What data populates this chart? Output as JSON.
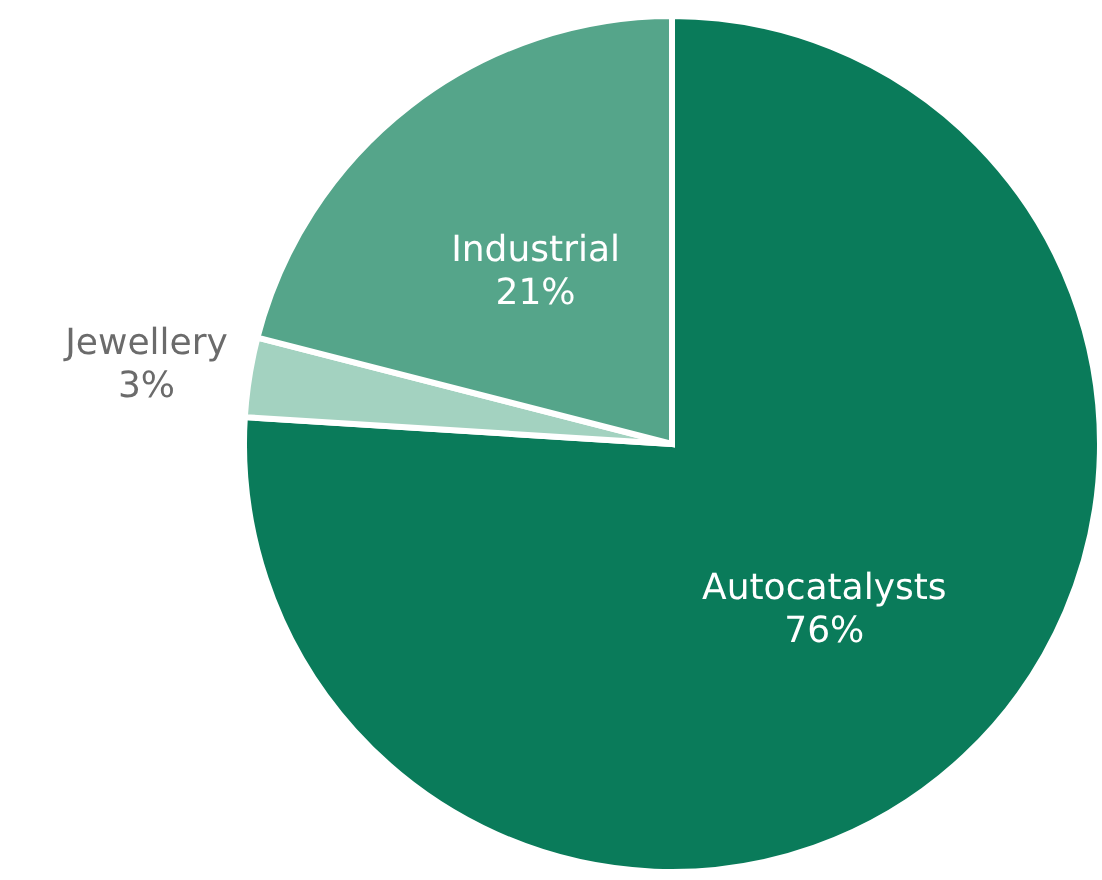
{
  "chart_data": {
    "type": "pie",
    "categories": [
      "Autocatalysts",
      "Jewellery",
      "Industrial"
    ],
    "values": [
      76,
      3,
      21
    ],
    "colors": [
      "#0a7b5a",
      "#a3d2c0",
      "#55a58a"
    ],
    "value_labels": [
      "76%",
      "3%",
      "21%"
    ]
  }
}
